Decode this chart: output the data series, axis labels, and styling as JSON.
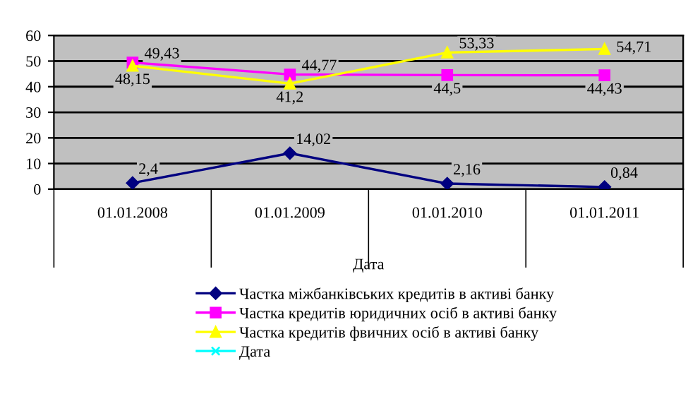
{
  "chart_data": {
    "type": "line",
    "xlabel": "Дата",
    "categories": [
      "01.01.2008",
      "01.01.2009",
      "01.01.2010",
      "01.01.2011"
    ],
    "series": [
      {
        "name": "Частка міжбанківських кредитів в активі банку",
        "color": "#000080",
        "marker": "diamond",
        "values": [
          2.4,
          14.02,
          2.16,
          0.84
        ],
        "value_labels": [
          "2,4",
          "14,02",
          "2,16",
          "0,84"
        ]
      },
      {
        "name": "Частка кредитів юридичних осіб в активі банку",
        "color": "#ff00ff",
        "marker": "square",
        "values": [
          49.43,
          44.77,
          44.5,
          44.43
        ],
        "value_labels": [
          "49,43",
          "44,77",
          "44,5",
          "44,43"
        ]
      },
      {
        "name": "Частка кредитів фвичних осіб в активі банку",
        "color": "#ffff00",
        "marker": "triangle",
        "values": [
          48.15,
          41.2,
          53.33,
          54.71
        ],
        "value_labels": [
          "48,15",
          "41,2",
          "53,33",
          "54,71"
        ]
      },
      {
        "name": "Дата",
        "color": "#00ffff",
        "marker": "cross",
        "values": [
          null,
          null,
          null,
          null
        ]
      }
    ],
    "ylim": [
      0,
      60
    ],
    "yticks": [
      0,
      10,
      20,
      30,
      40,
      50,
      60
    ],
    "grid": "y",
    "legend": "bottom"
  }
}
